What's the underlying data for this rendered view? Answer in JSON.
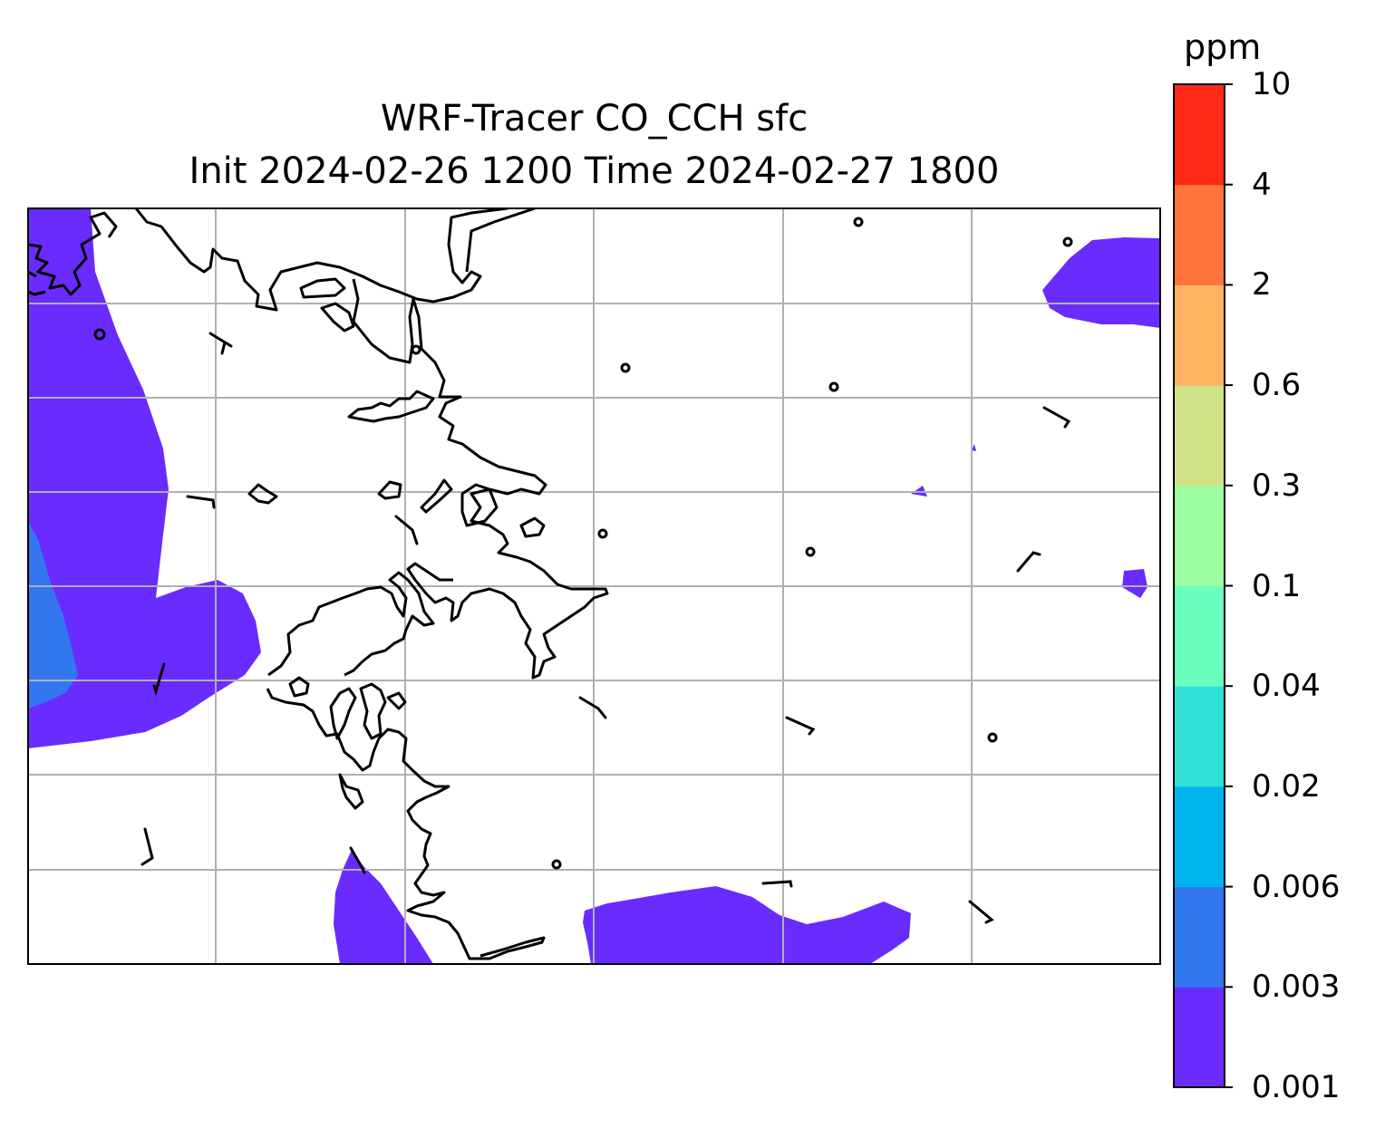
{
  "title": {
    "line1": "WRF-Tracer CO_CCH sfc",
    "line2": "Init 2024-02-26 1200 Time 2024-02-27 1800"
  },
  "colorbar": {
    "unit": "ppm",
    "levels": [
      "0.001",
      "0.003",
      "0.006",
      "0.02",
      "0.04",
      "0.1",
      "0.3",
      "0.6",
      "2",
      "4",
      "10"
    ],
    "colors": [
      "#6a2bff",
      "#3377f0",
      "#00b4ee",
      "#30e0d6",
      "#6affbf",
      "#9cffa0",
      "#d0e287",
      "#ffb360",
      "#ff733d",
      "#ff2a18"
    ]
  },
  "map": {
    "shading_color": "#6a2bff",
    "secondary_shading_color": "#3377f0",
    "gridline_color": "#b0b0b0",
    "coastline_color": "#000000",
    "wind_barbs": "calm circles and short barbs"
  }
}
